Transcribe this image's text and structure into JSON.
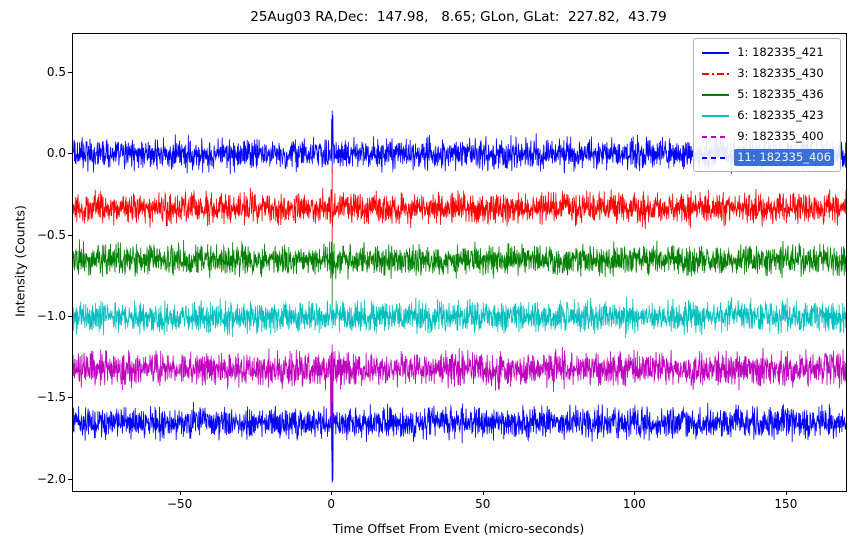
{
  "figure": {
    "background": "#ffffff"
  },
  "chart_data": {
    "type": "line",
    "title": "25Aug03 RA,Dec:  147.98,   8.65; GLon, GLat:  227.82,  43.79",
    "xlabel": "Time Offset From Event (micro-seconds)",
    "ylabel": "Intensity (Counts)",
    "xlim": [
      -85.5,
      169.5
    ],
    "ylim": [
      -2.07,
      0.74
    ],
    "x_ticks": [
      -50,
      0,
      50,
      100,
      150
    ],
    "x_tick_labels": [
      "−50",
      "0",
      "50",
      "100",
      "150"
    ],
    "y_ticks": [
      0.5,
      0.0,
      -0.5,
      -1.0,
      -1.5,
      -2.0
    ],
    "y_tick_labels": [
      "0.5",
      "0.0",
      "−0.5",
      "−1.0",
      "−1.5",
      "−2.0"
    ],
    "grid": false,
    "legend_position": "upper right",
    "legend_highlight_color": "#3a6fd6",
    "event_x": 0,
    "series": [
      {
        "label": "1: 182335_421",
        "color": "#0000ff",
        "linestyle": "solid",
        "offset": 0.0,
        "noise_sigma": 0.045,
        "spike_up": 0.27,
        "spike_down": 0.12,
        "highlighted": false
      },
      {
        "label": "3: 182335_430",
        "color": "#ff0000",
        "linestyle": "dash-dot",
        "offset": -0.33,
        "noise_sigma": 0.045,
        "spike_up": 0.25,
        "spike_down": 0.2,
        "highlighted": false
      },
      {
        "label": "5: 182335_436",
        "color": "#008000",
        "linestyle": "solid",
        "offset": -0.65,
        "noise_sigma": 0.045,
        "spike_up": 0.12,
        "spike_down": 0.3,
        "highlighted": false
      },
      {
        "label": "6: 182335_423",
        "color": "#00bfbf",
        "linestyle": "solid",
        "offset": -1.0,
        "noise_sigma": 0.045,
        "spike_up": 0.07,
        "spike_down": 0.07,
        "highlighted": false
      },
      {
        "label": "9: 182335_400",
        "color": "#bf00bf",
        "linestyle": "dashed",
        "offset": -1.32,
        "noise_sigma": 0.05,
        "spike_up": 0.15,
        "spike_down": 0.68,
        "highlighted": false
      },
      {
        "label": "11: 182335_406",
        "color": "#0000ff",
        "linestyle": "dashed",
        "offset": -1.65,
        "noise_sigma": 0.045,
        "spike_up": 0.12,
        "spike_down": 0.37,
        "highlighted": true
      }
    ]
  }
}
